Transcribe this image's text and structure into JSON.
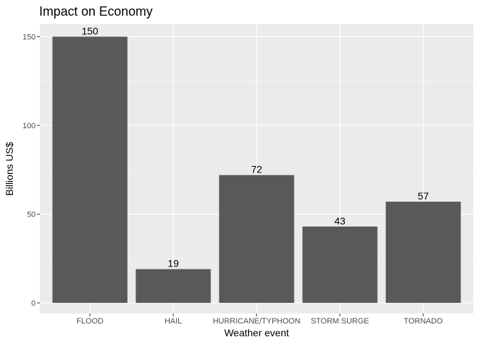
{
  "chart_data": {
    "type": "bar",
    "title": "Impact on Economy",
    "xlabel": "Weather event",
    "ylabel": "Billions US$",
    "categories": [
      "FLOOD",
      "HAIL",
      "HURRICANE/TYPHOON",
      "STORM SURGE",
      "TORNADO"
    ],
    "values": [
      150,
      19,
      72,
      43,
      57
    ],
    "data_labels": [
      "150",
      "19",
      "72",
      "43",
      "57"
    ],
    "ylim": [
      -6,
      157
    ],
    "yticks": [
      0,
      50,
      100,
      150
    ],
    "ytick_labels": [
      "0",
      "50",
      "100",
      "150"
    ],
    "grid": true,
    "legend": "none",
    "colors": {
      "bar": "#595959",
      "panel": "#ebebeb",
      "grid_major": "#ffffff",
      "grid_minor": "#f5f5f5"
    }
  }
}
